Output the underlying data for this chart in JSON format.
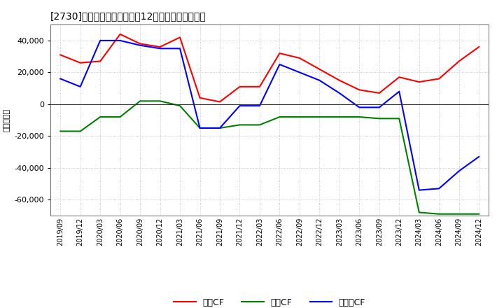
{
  "title": "[2730]　キャッシュフローの12か月移動合計の推移",
  "ylabel": "（百万円）",
  "ylim": [
    -70000,
    50000
  ],
  "yticks": [
    -60000,
    -40000,
    -20000,
    0,
    20000,
    40000
  ],
  "background_color": "#ffffff",
  "plot_bg_color": "#ffffff",
  "grid_color": "#bbbbbb",
  "dates": [
    "2019/09",
    "2019/12",
    "2020/03",
    "2020/06",
    "2020/09",
    "2020/12",
    "2021/03",
    "2021/06",
    "2021/09",
    "2021/12",
    "2022/03",
    "2022/06",
    "2022/09",
    "2022/12",
    "2023/03",
    "2023/06",
    "2023/09",
    "2023/12",
    "2024/03",
    "2024/06",
    "2024/09",
    "2024/12"
  ],
  "eigyo_cf": [
    31000,
    26000,
    27000,
    44000,
    38000,
    36000,
    42000,
    4000,
    1500,
    11000,
    11000,
    32000,
    29000,
    22000,
    15000,
    9000,
    7000,
    17000,
    14000,
    16000,
    27000,
    36000
  ],
  "toshi_cf": [
    -17000,
    -17000,
    -8000,
    -8000,
    2000,
    2000,
    -1000,
    -15000,
    -15000,
    -13000,
    -13000,
    -8000,
    -8000,
    -8000,
    -8000,
    -8000,
    -9000,
    -9000,
    -68000,
    -69000,
    -69000,
    -69000
  ],
  "free_cf": [
    16000,
    11000,
    40000,
    40000,
    37000,
    35000,
    35000,
    -15000,
    -15000,
    -1000,
    -1000,
    25000,
    20000,
    15000,
    7000,
    -2000,
    -2000,
    8000,
    -54000,
    -53000,
    -42000,
    -33000
  ],
  "line_colors": {
    "eigyo": "#ff0000",
    "toshi": "#008000",
    "free": "#0000ff"
  },
  "legend_labels": [
    "営業CF",
    "投資CF",
    "フリーCF"
  ]
}
